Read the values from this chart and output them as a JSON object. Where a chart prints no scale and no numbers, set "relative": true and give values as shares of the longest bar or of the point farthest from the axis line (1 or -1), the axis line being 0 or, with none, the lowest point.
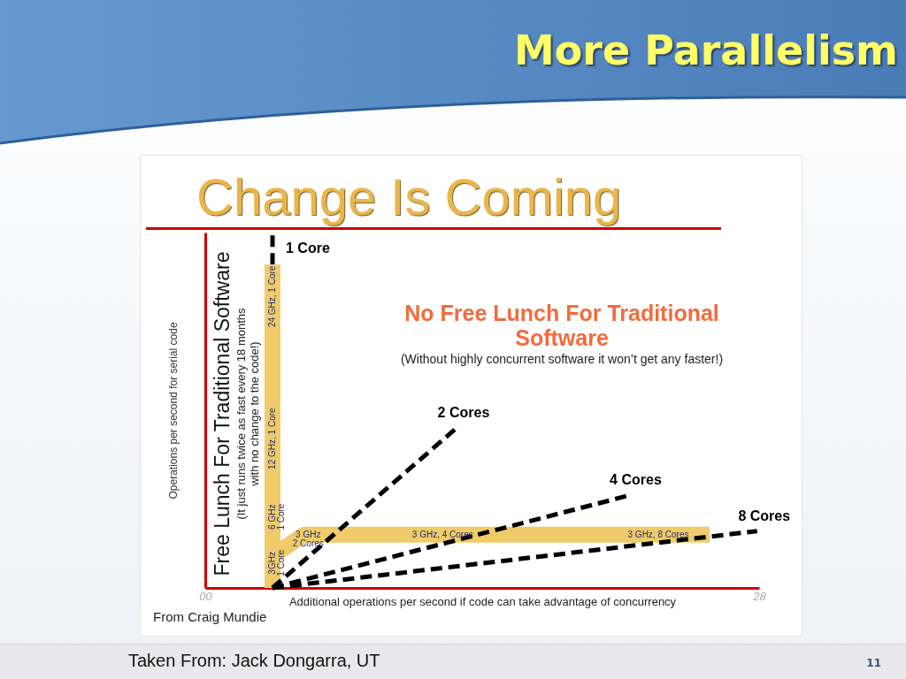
{
  "chart_data": {
    "type": "line",
    "title": "More Parallelism",
    "subtitle": "Change Is Coming",
    "xlabel": "Additional operations per second if code can take advantage of concurrency",
    "ylabel": "Operations per second for serial code",
    "relative": true,
    "xlim": [
      0,
      28
    ],
    "xticks": [
      {
        "value": 0,
        "label": "00"
      },
      28
    ],
    "line_style": "dashed",
    "series": [
      {
        "name": "1 Core",
        "color": "#000000",
        "x": [
          3.4,
          3.4
        ],
        "values": [
          0.91,
          1
        ]
      },
      {
        "color": "#efcb6a",
        "line_style": "solid",
        "x": [
          3.4,
          3.4,
          3.4,
          3.4,
          3.4
        ],
        "values": [
          0,
          0.14,
          0.27,
          0.5,
          0.91
        ]
      },
      {
        "color": "#efcb6a",
        "line_style": "solid",
        "x": [
          3.4,
          5.0,
          6.5,
          13.6,
          25.5
        ],
        "values": [
          0.09,
          0.15,
          0.15,
          0.15,
          0.15
        ]
      },
      {
        "name": "2 Cores",
        "color": "#000000",
        "x": [
          3.4,
          12.7
        ],
        "values": [
          0,
          0.45
        ]
      },
      {
        "name": "4 Cores",
        "color": "#000000",
        "x": [
          3.4,
          21.4
        ],
        "values": [
          0,
          0.26
        ]
      },
      {
        "name": "8 Cores",
        "color": "#000000",
        "x": [
          3.4,
          27.9
        ],
        "values": [
          0,
          0.16
        ]
      }
    ],
    "annotations": [
      "No Free Lunch For Traditional Software",
      "(Without highly concurrent software it won’t get any faster!)",
      "Free Lunch For Traditional Software",
      "(It just runs twice as fast every 18 months with no change to the code!)",
      "From Craig Mundie",
      "Taken From: Jack Dongarra, UT",
      "11",
      {
        "text": "3GHz\n1 Core",
        "x": 3.4,
        "y": 0.07
      },
      {
        "text": "6 GHz\n1 Core",
        "x": 3.4,
        "y": 0.2
      },
      {
        "text": "12 GHz, 1 Core",
        "x": 3.4,
        "y": 0.42
      },
      {
        "text": "24 GHz, 1 Core",
        "x": 3.4,
        "y": 0.82
      },
      {
        "text": "3 GHz\n2 Cores",
        "x": 5.2,
        "y": 0.15
      },
      {
        "text": "3 GHz, 4 Cores",
        "x": 12.0,
        "y": 0.15
      },
      {
        "text": "3 GHz, 8 Cores",
        "x": 22.9,
        "y": 0.15
      }
    ]
  }
}
